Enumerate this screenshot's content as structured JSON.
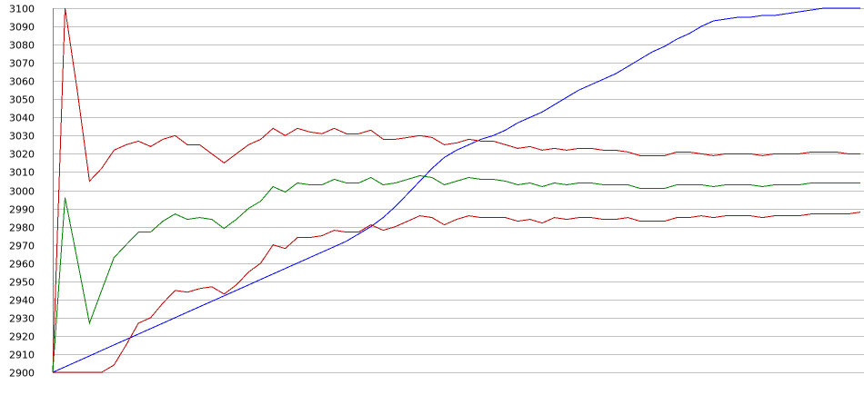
{
  "chart_data": {
    "type": "line",
    "title": "",
    "xlabel": "",
    "ylabel": "",
    "ylim": [
      2900,
      3100
    ],
    "yticks": [
      2900,
      2910,
      2920,
      2930,
      2940,
      2950,
      2960,
      2970,
      2980,
      2990,
      3000,
      3010,
      3020,
      3030,
      3040,
      3050,
      3060,
      3070,
      3080,
      3090,
      3100
    ],
    "grid": true,
    "legend": "none",
    "x": [
      0,
      1,
      2,
      3,
      4,
      5,
      6,
      7,
      8,
      9,
      10,
      11,
      12,
      13,
      14,
      15,
      16,
      17,
      18,
      19,
      20,
      21,
      22,
      23,
      24,
      25,
      26,
      27,
      28,
      29,
      30,
      31,
      32,
      33,
      34,
      35,
      36,
      37,
      38,
      39,
      40,
      41,
      42,
      43,
      44,
      45,
      46,
      47,
      48,
      49,
      50,
      51,
      52,
      53,
      54,
      55,
      56,
      57,
      58,
      59,
      60,
      61,
      62,
      63,
      64,
      65,
      66
    ],
    "series": [
      {
        "color": "#0000ff",
        "values": [
          2900,
          2903,
          2906,
          2909,
          2912,
          2915,
          2918,
          2921,
          2924,
          2927,
          2930,
          2933,
          2936,
          2939,
          2942,
          2945,
          2948,
          2951,
          2954,
          2957,
          2960,
          2963,
          2966,
          2969,
          2972,
          2976,
          2980,
          2985,
          2991,
          2998,
          3005,
          3012,
          3018,
          3022,
          3025,
          3028,
          3030,
          3033,
          3037,
          3040,
          3043,
          3047,
          3051,
          3055,
          3058,
          3061,
          3064,
          3068,
          3072,
          3076,
          3079,
          3083,
          3086,
          3090,
          3093,
          3094,
          3095,
          3095,
          3096,
          3096,
          3097,
          3098,
          3099,
          3100,
          3100,
          3100,
          3100
        ]
      },
      {
        "color": "#c00000",
        "values": [
          2900,
          3100,
          3055,
          3005,
          3012,
          3022,
          3025,
          3027,
          3024,
          3028,
          3030,
          3025,
          3025,
          3020,
          3015,
          3020,
          3025,
          3028,
          3034,
          3030,
          3034,
          3032,
          3031,
          3034,
          3031,
          3031,
          3033,
          3028,
          3028,
          3029,
          3030,
          3029,
          3025,
          3026,
          3028,
          3027,
          3027,
          3025,
          3023,
          3024,
          3022,
          3023,
          3022,
          3023,
          3023,
          3022,
          3022,
          3021,
          3019,
          3019,
          3019,
          3021,
          3021,
          3020,
          3019,
          3020,
          3020,
          3020,
          3019,
          3020,
          3020,
          3020,
          3021,
          3021,
          3021,
          3020,
          3020
        ]
      },
      {
        "color": "#008000",
        "values": [
          2900,
          2996,
          2962,
          2927,
          2945,
          2963,
          2970,
          2977,
          2977,
          2983,
          2987,
          2984,
          2985,
          2984,
          2979,
          2984,
          2990,
          2994,
          3002,
          2999,
          3004,
          3003,
          3003,
          3006,
          3004,
          3004,
          3007,
          3003,
          3004,
          3006,
          3008,
          3007,
          3003,
          3005,
          3007,
          3006,
          3006,
          3005,
          3003,
          3004,
          3002,
          3004,
          3003,
          3004,
          3004,
          3003,
          3003,
          3003,
          3001,
          3001,
          3001,
          3003,
          3003,
          3003,
          3002,
          3003,
          3003,
          3003,
          3002,
          3003,
          3003,
          3003,
          3004,
          3004,
          3004,
          3004,
          3004
        ]
      },
      {
        "color": "#c00000",
        "values": [
          2900,
          2900,
          2900,
          2900,
          2900,
          2904,
          2915,
          2927,
          2930,
          2938,
          2945,
          2944,
          2946,
          2947,
          2943,
          2948,
          2955,
          2960,
          2970,
          2968,
          2974,
          2974,
          2975,
          2978,
          2977,
          2977,
          2981,
          2978,
          2980,
          2983,
          2986,
          2985,
          2981,
          2984,
          2986,
          2985,
          2985,
          2985,
          2983,
          2984,
          2982,
          2985,
          2984,
          2985,
          2985,
          2984,
          2984,
          2985,
          2983,
          2983,
          2983,
          2985,
          2985,
          2986,
          2985,
          2986,
          2986,
          2986,
          2985,
          2986,
          2986,
          2986,
          2987,
          2987,
          2987,
          2987,
          2988
        ]
      }
    ]
  }
}
